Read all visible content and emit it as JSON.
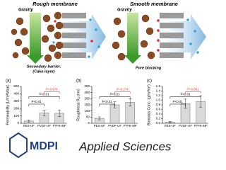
{
  "diagram": {
    "panels": [
      {
        "title": "Rough membrane",
        "force": "Gravity",
        "note": [
          "Secondary barrier,",
          "(Cake layer)"
        ]
      },
      {
        "title": "Smooth membrane",
        "force": "Gravity",
        "note": [
          "Pore blocking"
        ]
      }
    ]
  },
  "chart_data": [
    {
      "type": "bar",
      "label": "(a)",
      "y_label": "Permeability (L/m²/h/bar)",
      "categories": [
        "PES-UF",
        "PVDF-UF",
        "PTFE-MF"
      ],
      "values": [
        30,
        140,
        135
      ],
      "errors": [
        15,
        40,
        45
      ],
      "color": "#d9d9d9",
      "ylim": [
        0,
        500
      ],
      "yticks": [
        0,
        100,
        200,
        300,
        400,
        500
      ],
      "annotations": [
        "P<0.01",
        "P<0.01",
        "P=0.974"
      ],
      "annotation_colors": [
        "#000000",
        "#000000",
        "#e8262a"
      ]
    },
    {
      "type": "bar",
      "label": "(b)",
      "y_label": "Roughness Rₐ (nm)",
      "categories": [
        "PES-UF",
        "PVDF-UF",
        "PTFE-MF"
      ],
      "values": [
        40,
        150,
        170
      ],
      "errors": [
        12,
        25,
        30
      ],
      "color": "#d9d9d9",
      "ylim": [
        0,
        300
      ],
      "yticks": [
        0,
        50,
        100,
        150,
        200,
        250,
        300
      ],
      "annotations": [
        "P<0.01",
        "P<0.01",
        "P=0.274"
      ],
      "annotation_colors": [
        "#000000",
        "#000000",
        "#e8262a"
      ]
    },
    {
      "type": "bar",
      "label": "(c)",
      "y_label": "Biomass Conc. (g/m²/m³)",
      "categories": [
        "PES-UF",
        "PVDF-UF",
        "PTFE-MF"
      ],
      "values": [
        0.05,
        0.85,
        0.95
      ],
      "errors": [
        0.03,
        0.2,
        0.25
      ],
      "color": "#d9d9d9",
      "ylim": [
        0,
        1.6
      ],
      "yticks": [
        {
          "value": 0,
          "label": "0.0"
        },
        {
          "value": 0.2,
          "label": "0.2"
        },
        {
          "value": 0.4,
          "label": "0.4"
        },
        {
          "value": 0.6,
          "label": "0.6"
        },
        {
          "value": 0.8,
          "label": "0.8"
        },
        {
          "value": 1,
          "label": "1.0"
        },
        {
          "value": 1.2,
          "label": "1.2"
        },
        {
          "value": 1.4,
          "label": "1.4"
        },
        {
          "value": 1.6,
          "label": "1.6"
        }
      ],
      "annotations": [
        "P<0.01",
        "P<0.01",
        "P=0.051"
      ],
      "annotation_colors": [
        "#000000",
        "#000000",
        "#e8262a"
      ]
    }
  ],
  "footer": {
    "publisher": "MDPI",
    "journal": "Applied Sciences"
  }
}
